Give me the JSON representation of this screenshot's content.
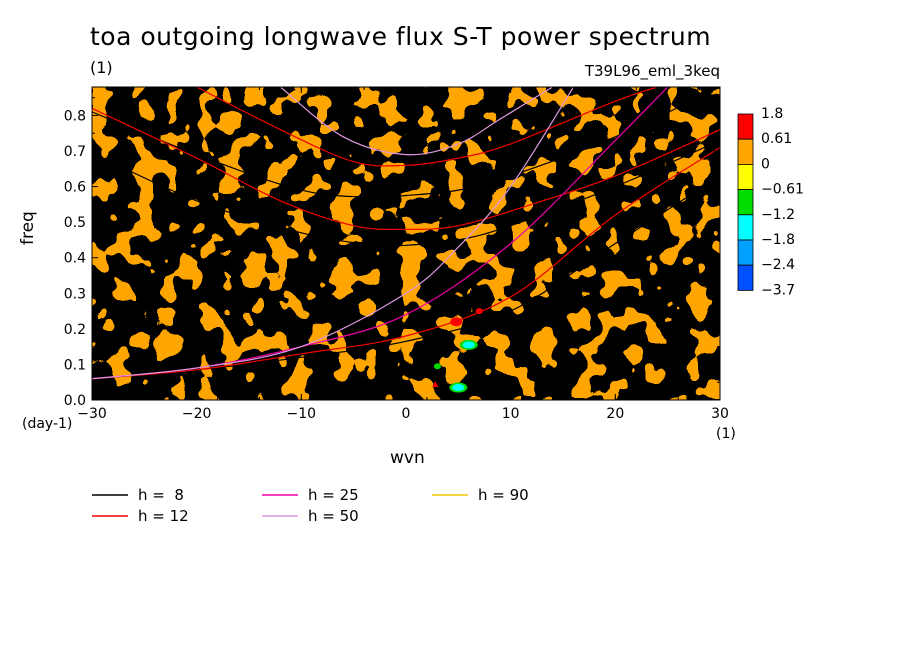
{
  "chart_data": {
    "type": "heatmap",
    "title": "toa outgoing longwave flux S-T power spectrum",
    "subtitle_unit": "(1)",
    "run_tag": "T39L96_eml_3keq",
    "xlabel": "wvn",
    "ylabel": "freq",
    "xunit": "(1)",
    "yunit": "(day-1)",
    "xlim": [
      -30,
      30
    ],
    "ylim": [
      0,
      0.88
    ],
    "x_ticks": [
      -30,
      -20,
      -10,
      0,
      10,
      20,
      30
    ],
    "x_tick_labels": [
      "−30",
      "−20",
      "−10",
      "0",
      "10",
      "20",
      "30"
    ],
    "y_ticks": [
      0.0,
      0.1,
      0.2,
      0.3,
      0.4,
      0.5,
      0.6,
      0.7,
      0.8
    ],
    "y_tick_labels": [
      "0.0",
      "0.1",
      "0.2",
      "0.3",
      "0.4",
      "0.5",
      "0.6",
      "0.7",
      "0.8"
    ],
    "colorbar": {
      "labels": [
        "1.8",
        "0.61",
        "0",
        "−0.61",
        "−1.2",
        "−1.8",
        "−2.4",
        "−3.7"
      ],
      "colors": [
        "#ff0000",
        "#ffa500",
        "#ffff00",
        "#00dd00",
        "#00ffff",
        "#00a0ff",
        "#0050ff"
      ]
    },
    "field_colors": {
      "positive": "#ffa500",
      "zero": "#ffff00",
      "strong_positive": "#ff0000",
      "negative_cyan": "#00ffff",
      "negative_green": "#00dd00"
    },
    "hotspots": [
      {
        "x": 4.8,
        "y": 0.22,
        "level": "strong_positive"
      },
      {
        "x": 7.0,
        "y": 0.25,
        "level": "strong_positive"
      },
      {
        "x": 6.0,
        "y": 0.155,
        "level": "negative_cyan"
      },
      {
        "x": 5.0,
        "y": 0.035,
        "level": "negative_cyan"
      },
      {
        "x": 3.0,
        "y": 0.095,
        "level": "negative_green"
      },
      {
        "x": 2.8,
        "y": 0.045,
        "level": "strong_positive"
      }
    ],
    "series": [
      {
        "name": "h =  8",
        "color": "#000000"
      },
      {
        "name": "h = 12",
        "color": "#ee0000"
      },
      {
        "name": "h = 25",
        "color": "#ee00aa"
      },
      {
        "name": "h = 50",
        "color": "#dd99dd"
      },
      {
        "name": "h = 90",
        "color": "#f0c800"
      }
    ],
    "dispersion_curves": [
      {
        "series": 0,
        "kind": "igw",
        "points": [
          [
            -30,
            0.695
          ],
          [
            -20,
            0.56
          ],
          [
            -10,
            0.47
          ],
          [
            -3,
            0.435
          ],
          [
            0,
            0.435
          ],
          [
            5,
            0.45
          ],
          [
            10,
            0.49
          ],
          [
            20,
            0.6
          ],
          [
            30,
            0.73
          ]
        ]
      },
      {
        "series": 0,
        "kind": "kelvin",
        "points": [
          [
            -30,
            0.06
          ],
          [
            -20,
            0.085
          ],
          [
            -10,
            0.12
          ],
          [
            0,
            0.165
          ],
          [
            10,
            0.25
          ],
          [
            20,
            0.44
          ],
          [
            30,
            0.63
          ]
        ]
      },
      {
        "series": 0,
        "kind": "igw2",
        "points": [
          [
            -30,
            0.81
          ],
          [
            -20,
            0.69
          ],
          [
            -10,
            0.59
          ],
          [
            -3,
            0.57
          ],
          [
            0,
            0.575
          ],
          [
            5,
            0.59
          ],
          [
            10,
            0.63
          ],
          [
            20,
            0.74
          ],
          [
            30,
            0.88
          ]
        ]
      },
      {
        "series": 1,
        "kind": "igw",
        "points": [
          [
            -30,
            0.82
          ],
          [
            -20,
            0.68
          ],
          [
            -12,
            0.56
          ],
          [
            -5,
            0.49
          ],
          [
            0,
            0.48
          ],
          [
            5,
            0.49
          ],
          [
            12,
            0.55
          ],
          [
            20,
            0.63
          ],
          [
            30,
            0.76
          ]
        ]
      },
      {
        "series": 1,
        "kind": "kelvin",
        "points": [
          [
            -30,
            0.06
          ],
          [
            -20,
            0.085
          ],
          [
            -10,
            0.13
          ],
          [
            0,
            0.18
          ],
          [
            10,
            0.29
          ],
          [
            20,
            0.52
          ],
          [
            30,
            0.71
          ]
        ]
      },
      {
        "series": 1,
        "kind": "igw2",
        "points": [
          [
            -20,
            0.88
          ],
          [
            -12,
            0.76
          ],
          [
            -5,
            0.67
          ],
          [
            0,
            0.66
          ],
          [
            5,
            0.68
          ],
          [
            10,
            0.72
          ],
          [
            20,
            0.84
          ],
          [
            24,
            0.88
          ]
        ]
      },
      {
        "series": 2,
        "kind": "kelvin",
        "points": [
          [
            -30,
            0.06
          ],
          [
            -20,
            0.09
          ],
          [
            -10,
            0.15
          ],
          [
            0,
            0.24
          ],
          [
            10,
            0.44
          ],
          [
            20,
            0.73
          ],
          [
            25,
            0.88
          ]
        ]
      },
      {
        "series": 3,
        "kind": "kelvin",
        "points": [
          [
            -30,
            0.06
          ],
          [
            -20,
            0.09
          ],
          [
            -10,
            0.15
          ],
          [
            0,
            0.3
          ],
          [
            5,
            0.43
          ],
          [
            10,
            0.6
          ],
          [
            16,
            0.88
          ]
        ]
      },
      {
        "series": 3,
        "kind": "igw",
        "points": [
          [
            -12,
            0.88
          ],
          [
            -6,
            0.74
          ],
          [
            0,
            0.69
          ],
          [
            5,
            0.72
          ],
          [
            9,
            0.79
          ],
          [
            14,
            0.88
          ]
        ]
      }
    ]
  }
}
